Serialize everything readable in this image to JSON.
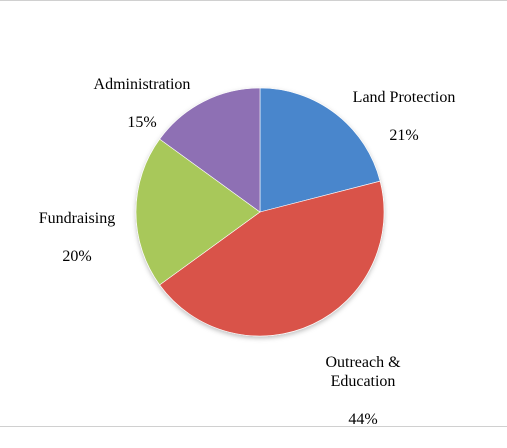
{
  "chart_data": {
    "type": "pie",
    "start_angle_deg": 0,
    "direction": "clockwise",
    "slices": [
      {
        "label": "Land Protection",
        "value": 21,
        "value_label": "21%",
        "color": "#4a86cc"
      },
      {
        "label": "Outreach &\nEducation",
        "value": 44,
        "value_label": "44%",
        "color": "#d9534a"
      },
      {
        "label": "Fundraising",
        "value": 20,
        "value_label": "20%",
        "color": "#a8c85a"
      },
      {
        "label": "Administration",
        "value": 15,
        "value_label": "15%",
        "color": "#8e6fb4"
      }
    ],
    "legend": "none"
  }
}
